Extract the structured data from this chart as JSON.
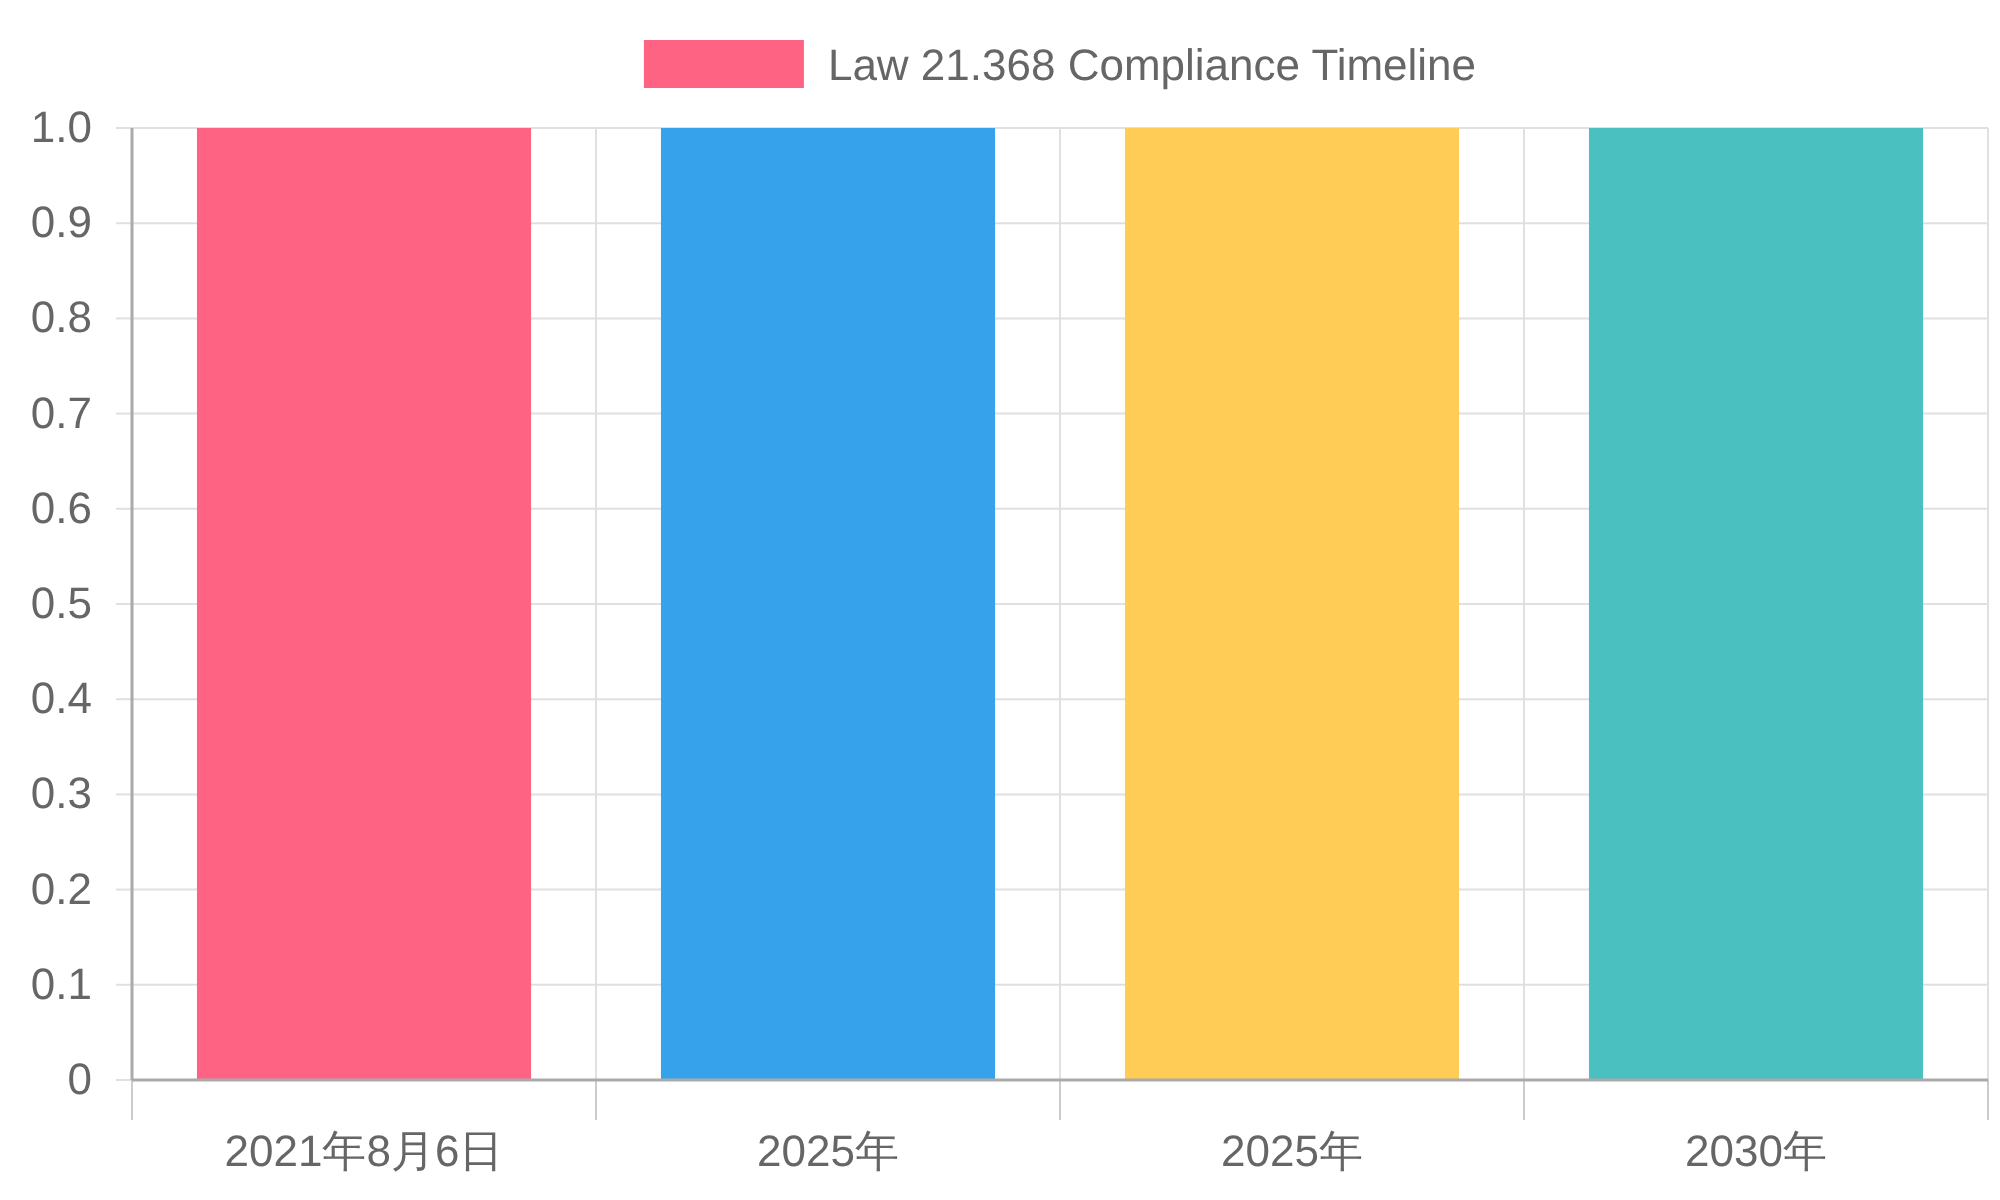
{
  "chart_data": {
    "type": "bar",
    "categories": [
      "2021年8月6日",
      "2025年",
      "2025年",
      "2030年"
    ],
    "series": [
      {
        "name": "Law 21.368 Compliance Timeline",
        "colors": [
          "#ff6384",
          "#36a2eb",
          "#ffcd56",
          "#4bc0c0"
        ],
        "values": [
          1,
          1,
          1,
          1
        ]
      }
    ],
    "ylim": [
      0,
      1
    ],
    "yticks": [
      0,
      0.1,
      0.2,
      0.3,
      0.4,
      0.5,
      0.6,
      0.7,
      0.8,
      0.9,
      {
        "value": 1,
        "label": "1.0"
      }
    ],
    "grid": true,
    "legend": "top"
  }
}
